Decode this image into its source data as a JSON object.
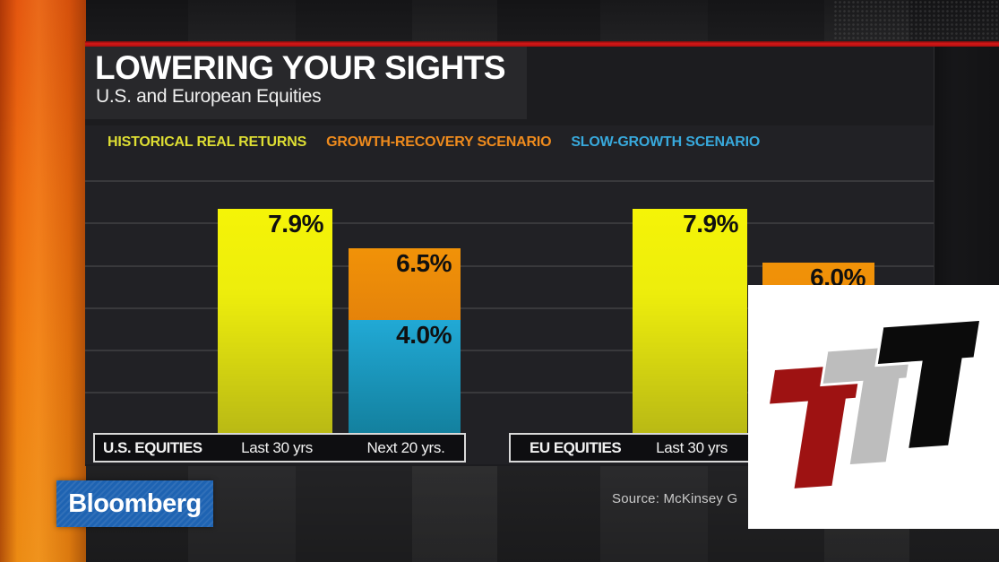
{
  "header": {
    "title": "LOWERING YOUR SIGHTS",
    "subtitle": "U.S. and European Equities"
  },
  "chart_data": {
    "type": "bar",
    "title": "LOWERING YOUR SIGHTS",
    "subtitle": "U.S. and European Equities",
    "value_unit": "%",
    "ylim": [
      0,
      9
    ],
    "grid": "horizontal",
    "legend_position": "top",
    "series": [
      {
        "id": "historical",
        "label": "HISTORICAL REAL RETURNS",
        "color": "#dede33"
      },
      {
        "id": "growth_recovery",
        "label": "GROWTH-RECOVERY SCENARIO",
        "color": "#ef8b1d"
      },
      {
        "id": "slow_growth",
        "label": "SLOW-GROWTH SCENARIO",
        "color": "#38a9dc"
      }
    ],
    "groups": [
      {
        "label": "U.S. EQUITIES",
        "bars": [
          {
            "label": "Last 30 yrs",
            "segments": [
              {
                "series": "historical",
                "value": 7.9
              }
            ]
          },
          {
            "label": "Next 20 yrs.",
            "segments": [
              {
                "series": "slow_growth",
                "value": 4.0
              },
              {
                "series": "growth_recovery",
                "value": 6.5
              }
            ]
          }
        ]
      },
      {
        "label": "EU EQUITIES",
        "bars": [
          {
            "label": "Last 30 yrs",
            "segments": [
              {
                "series": "historical",
                "value": 7.9
              }
            ]
          },
          {
            "label": "",
            "segments": [
              {
                "series": "growth_recovery",
                "value": 6.0
              }
            ]
          }
        ]
      }
    ]
  },
  "footer": {
    "source": "Source: McKinsey G",
    "logo_text": "Bloomberg",
    "logo_bg": "#1e63b2"
  },
  "watermark": {
    "letters": [
      "T",
      "T",
      "T"
    ],
    "colors": [
      "#9e1212",
      "#bdbdbd",
      "#0b0b0b"
    ],
    "background": "#ffffff"
  },
  "theme": {
    "accent_red": "#c01313",
    "orange_sidebar": "#ee7912",
    "card_bg": "#1c1c1f",
    "panel_bg": "#212125",
    "grid_color": "#39393c",
    "axis_box_border": "#d9d9d9",
    "bar_label_color": "#101010",
    "text_primary": "#ffffff"
  }
}
